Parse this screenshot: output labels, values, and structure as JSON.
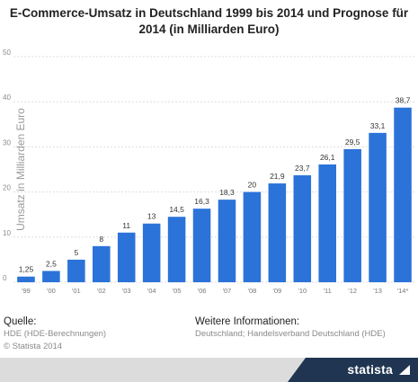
{
  "chart_data": {
    "type": "bar",
    "title": "E-Commerce-Umsatz in Deutschland 1999 bis 2014 und Prognose für 2014 (in Milliarden Euro)",
    "title_lines": [
      "E-Commerce-Umsatz in Deutschland 1999 bis 2014 und Prognose für",
      "2014 (in Milliarden Euro)"
    ],
    "ylabel": "Umsatz in Milliarden Euro",
    "xlabel": "",
    "ylim": [
      0,
      50
    ],
    "yticks": [
      0,
      10,
      20,
      30,
      40,
      50
    ],
    "grid": true,
    "bar_color": "#2b73d9",
    "categories": [
      "'99",
      "'00",
      "'01",
      "'02",
      "'03",
      "'04",
      "'05",
      "'06",
      "'07",
      "'08",
      "'09",
      "'10",
      "'11",
      "'12",
      "'13",
      "'14*"
    ],
    "values": [
      1.25,
      2.5,
      5,
      8,
      11,
      13,
      14.5,
      16.3,
      18.3,
      20,
      21.9,
      23.7,
      26.1,
      29.5,
      33.1,
      38.7
    ],
    "value_labels": [
      "1,25",
      "2,5",
      "5",
      "8",
      "11",
      "13",
      "14,5",
      "16,3",
      "18,3",
      "20",
      "21,9",
      "23,7",
      "26,1",
      "29,5",
      "33,1",
      "38,7"
    ]
  },
  "source": {
    "heading": "Quelle:",
    "line1": "HDE (HDE-Berechnungen)",
    "line2": "© Statista 2014"
  },
  "info": {
    "heading": "Weitere Informationen:",
    "line1": "Deutschland; Handelsverband Deutschland (HDE)"
  },
  "brand": {
    "name": "statista",
    "icon": "statista-logo-icon",
    "dark_color": "#1f3551"
  }
}
